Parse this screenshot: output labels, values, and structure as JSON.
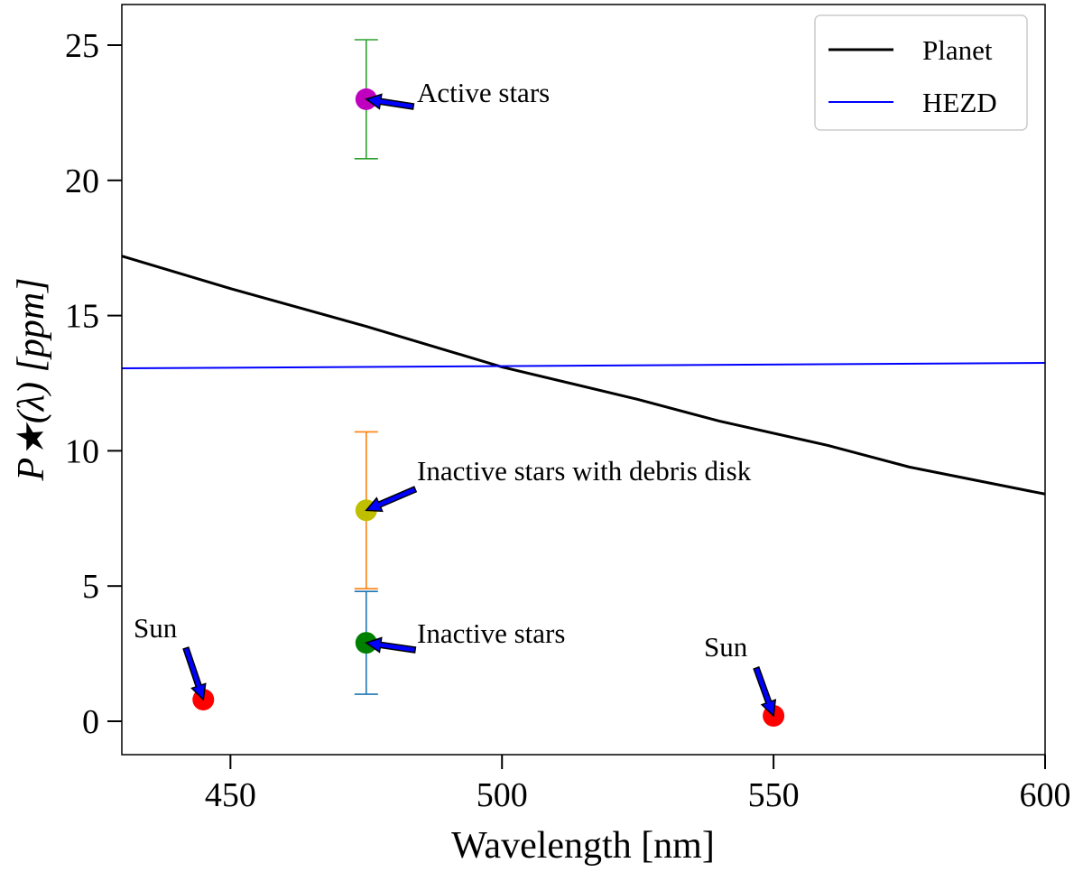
{
  "chart_data": {
    "type": "line",
    "title": "",
    "xlabel": "Wavelength [nm]",
    "ylabel": "P★(λ) [ppm]",
    "xlim": [
      430,
      600
    ],
    "ylim": [
      -1.2,
      26.5
    ],
    "xticks": [
      450,
      500,
      550,
      600
    ],
    "yticks": [
      0,
      5,
      10,
      15,
      20,
      25
    ],
    "grid": false,
    "legend_position": "top-right",
    "series": [
      {
        "name": "Planet",
        "color": "#000000",
        "x": [
          430,
          450,
          475,
          500,
          525,
          540,
          560,
          575,
          600
        ],
        "y": [
          17.2,
          16.0,
          14.6,
          13.1,
          11.9,
          11.1,
          10.2,
          9.4,
          8.4
        ]
      },
      {
        "name": "HEZD",
        "color": "#0000ff",
        "x": [
          430,
          600
        ],
        "y": [
          13.05,
          13.25
        ]
      }
    ],
    "points": [
      {
        "label": "Active stars",
        "x": 475,
        "y": 23.0,
        "yerr": [
          20.8,
          25.2
        ],
        "color": "#bf00bf",
        "err_color": "#2ca02c"
      },
      {
        "label": "Inactive stars with debris disk",
        "x": 475,
        "y": 7.8,
        "yerr": [
          4.9,
          10.7
        ],
        "color": "#bfbf00",
        "err_color": "#ff7f0e"
      },
      {
        "label": "Inactive stars",
        "x": 475,
        "y": 2.9,
        "yerr": [
          1.0,
          4.8
        ],
        "color": "#008000",
        "err_color": "#1f77b4"
      },
      {
        "label": "Sun",
        "x": 445,
        "y": 0.8,
        "color": "#ff0000"
      },
      {
        "label": "Sun",
        "x": 550,
        "y": 0.2,
        "color": "#ff0000"
      }
    ],
    "arrow_color": "#0000ff"
  }
}
